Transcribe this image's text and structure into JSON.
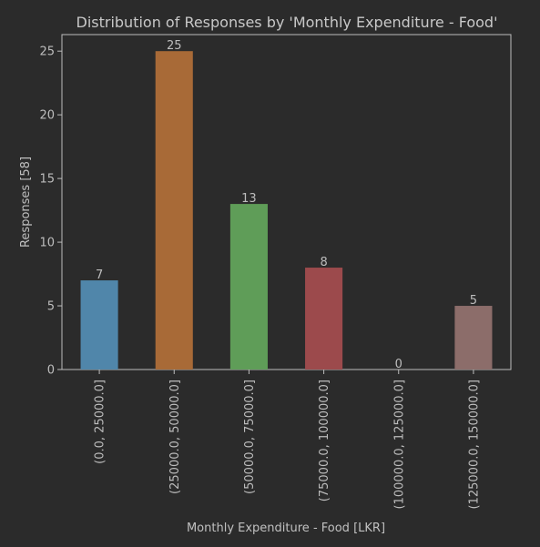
{
  "chart_data": {
    "type": "bar",
    "title": "Distribution of Responses by 'Monthly Expenditure - Food'",
    "xlabel": "Monthly Expenditure - Food [LKR]",
    "ylabel": "Responses [58]",
    "categories": [
      "(0.0, 25000.0]",
      "(25000.0, 50000.0]",
      "(50000.0, 75000.0]",
      "(75000.0, 100000.0]",
      "(100000.0, 125000.0]",
      "(125000.0, 150000.0]"
    ],
    "values": [
      7,
      25,
      13,
      8,
      0,
      5
    ],
    "data_labels": [
      "7",
      "25",
      "13",
      "8",
      "0",
      "5"
    ],
    "colors": [
      "#5086aa",
      "#a86a37",
      "#5f9d58",
      "#9c4a4c",
      "#7f62a0",
      "#8c6d6a"
    ],
    "ylim": [
      0,
      26.3
    ],
    "yticks": [
      0,
      5,
      10,
      15,
      20,
      25
    ],
    "grid": false,
    "legend": "none"
  },
  "style": {
    "background": "#2b2b2b",
    "axes_color": "#bdbdbd",
    "text_color": "#c8c8c8"
  }
}
